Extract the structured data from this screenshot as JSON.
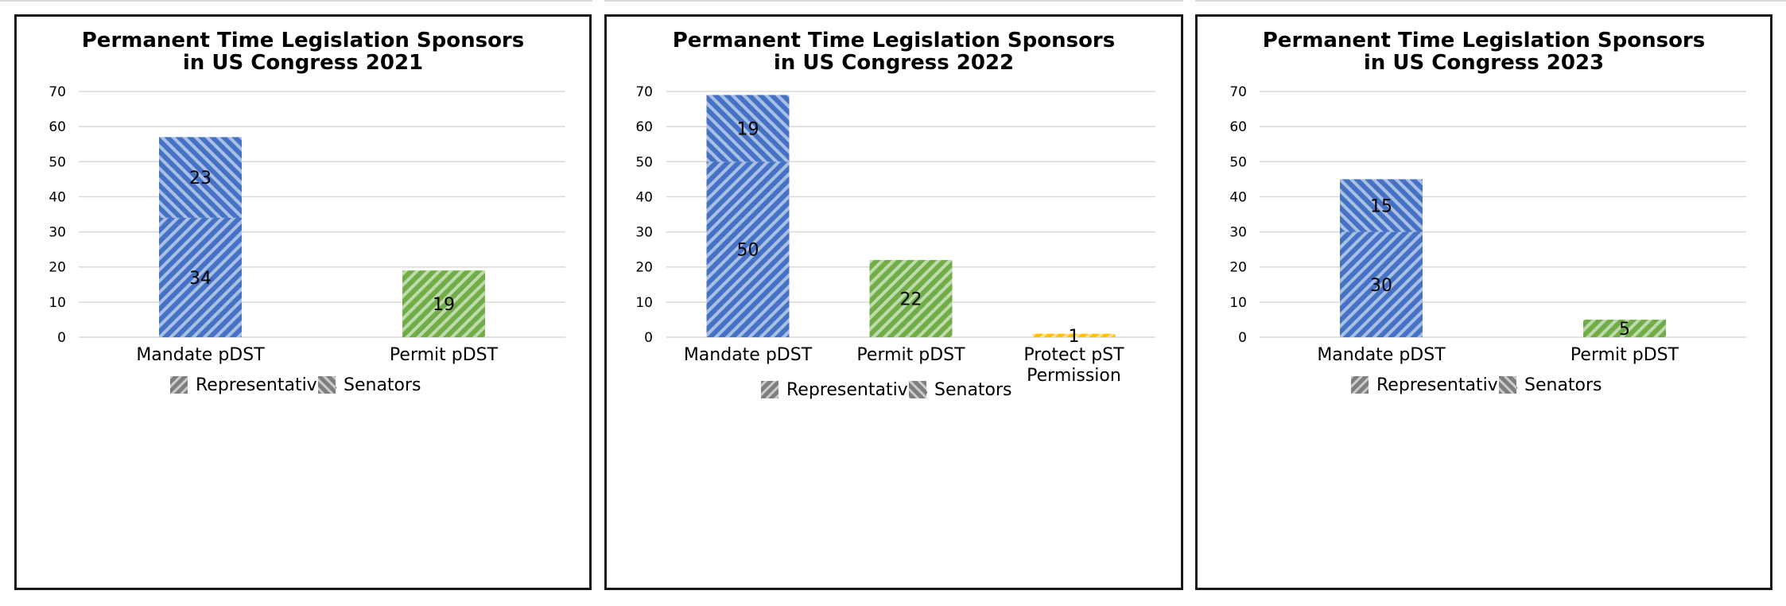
{
  "colors": {
    "mandate": "#4472c4",
    "permit": "#70ad47",
    "protect": "#ffc000",
    "legend_swatch": "#7f7f7f",
    "grid": "#d9d9d9",
    "text": "#000000"
  },
  "legend": [
    "Representatives",
    "Senators"
  ],
  "chart_data": [
    {
      "type": "bar",
      "stacked": true,
      "title": [
        "Permanent Time Legislation Sponsors",
        "in US Congress 2021"
      ],
      "categories": [
        [
          "Mandate pDST"
        ],
        [
          "Permit pDST"
        ]
      ],
      "series": [
        {
          "name": "Representatives",
          "values": [
            34,
            19
          ]
        },
        {
          "name": "Senators",
          "values": [
            23,
            0
          ]
        }
      ],
      "labels": [
        [
          "34",
          "23"
        ],
        [
          "19",
          null
        ]
      ],
      "ylim": [
        0,
        70
      ],
      "yticks": [
        0,
        10,
        20,
        30,
        40,
        50,
        60,
        70
      ],
      "grid": true,
      "legend_position": "bottom"
    },
    {
      "type": "bar",
      "stacked": true,
      "title": [
        "Permanent Time Legislation Sponsors",
        "in US Congress 2022"
      ],
      "categories": [
        [
          "Mandate pDST"
        ],
        [
          "Permit pDST"
        ],
        [
          "Protect pST",
          "Permission"
        ]
      ],
      "series": [
        {
          "name": "Representatives",
          "values": [
            50,
            22,
            1
          ]
        },
        {
          "name": "Senators",
          "values": [
            19,
            0,
            0
          ]
        }
      ],
      "labels": [
        [
          "50",
          "19"
        ],
        [
          "22",
          null
        ],
        [
          "1",
          null
        ]
      ],
      "ylim": [
        0,
        70
      ],
      "yticks": [
        0,
        10,
        20,
        30,
        40,
        50,
        60,
        70
      ],
      "grid": true,
      "legend_position": "bottom"
    },
    {
      "type": "bar",
      "stacked": true,
      "title": [
        "Permanent Time Legislation Sponsors",
        "in US Congress 2023"
      ],
      "categories": [
        [
          "Mandate pDST"
        ],
        [
          "Permit pDST"
        ]
      ],
      "series": [
        {
          "name": "Representatives",
          "values": [
            30,
            5
          ]
        },
        {
          "name": "Senators",
          "values": [
            15,
            0
          ]
        }
      ],
      "labels": [
        [
          "30",
          "15"
        ],
        [
          "5",
          null
        ]
      ],
      "ylim": [
        0,
        70
      ],
      "yticks": [
        0,
        10,
        20,
        30,
        40,
        50,
        60,
        70
      ],
      "grid": true,
      "legend_position": "bottom"
    }
  ]
}
